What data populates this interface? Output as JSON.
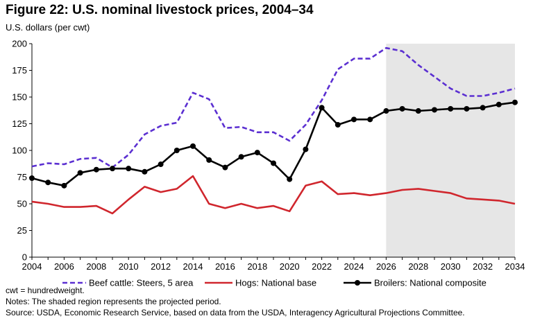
{
  "title": "Figure 22: U.S. nominal livestock prices, 2004–34",
  "ylabel": "U.S. dollars (per cwt)",
  "notes": [
    "cwt = hundredweight.",
    "Notes: The shaded region represents the projected period.",
    "Source: USDA, Economic Research Service, based on data from the USDA, Interagency Agricultural Projections Committee."
  ],
  "colors": {
    "beef": "#5b2fd1",
    "hogs": "#d0262d",
    "broilers": "#000000",
    "shade": "#e6e6e6"
  },
  "chart_data": {
    "type": "line",
    "x": [
      2004,
      2005,
      2006,
      2007,
      2008,
      2009,
      2010,
      2011,
      2012,
      2013,
      2014,
      2015,
      2016,
      2017,
      2018,
      2019,
      2020,
      2021,
      2022,
      2023,
      2024,
      2025,
      2026,
      2027,
      2028,
      2029,
      2030,
      2031,
      2032,
      2033,
      2034
    ],
    "xticks": [
      "2004",
      "2006",
      "2008",
      "2010",
      "2012",
      "2014",
      "2016",
      "2018",
      "2020",
      "2022",
      "2024",
      "2026",
      "2028",
      "2030",
      "2032",
      "2034"
    ],
    "xlim": [
      2004,
      2034
    ],
    "ylim": [
      0,
      200
    ],
    "yticks": [
      "0",
      "25",
      "50",
      "75",
      "100",
      "125",
      "150",
      "175",
      "200"
    ],
    "projected_from": 2026,
    "series": [
      {
        "name": "Beef cattle: Steers, 5 area",
        "style": "dashed",
        "values": [
          85,
          88,
          87,
          92,
          93,
          84,
          96,
          115,
          123,
          126,
          154,
          148,
          121,
          122,
          117,
          117,
          109,
          124,
          147,
          176,
          186,
          186,
          196,
          193,
          180,
          169,
          158,
          151,
          151,
          154,
          158
        ]
      },
      {
        "name": "Hogs: National base",
        "style": "solid",
        "values": [
          52,
          50,
          47,
          47,
          48,
          41,
          54,
          66,
          61,
          64,
          76,
          50,
          46,
          50,
          46,
          48,
          43,
          67,
          71,
          59,
          60,
          58,
          60,
          63,
          64,
          62,
          60,
          55,
          54,
          53,
          50
        ]
      },
      {
        "name": "Broilers: National composite",
        "style": "solid-marker",
        "values": [
          74,
          70,
          67,
          79,
          82,
          83,
          83,
          80,
          87,
          100,
          104,
          91,
          84,
          94,
          98,
          88,
          73,
          101,
          140,
          124,
          129,
          129,
          137,
          139,
          137,
          138,
          139,
          139,
          140,
          143,
          145
        ]
      }
    ]
  }
}
